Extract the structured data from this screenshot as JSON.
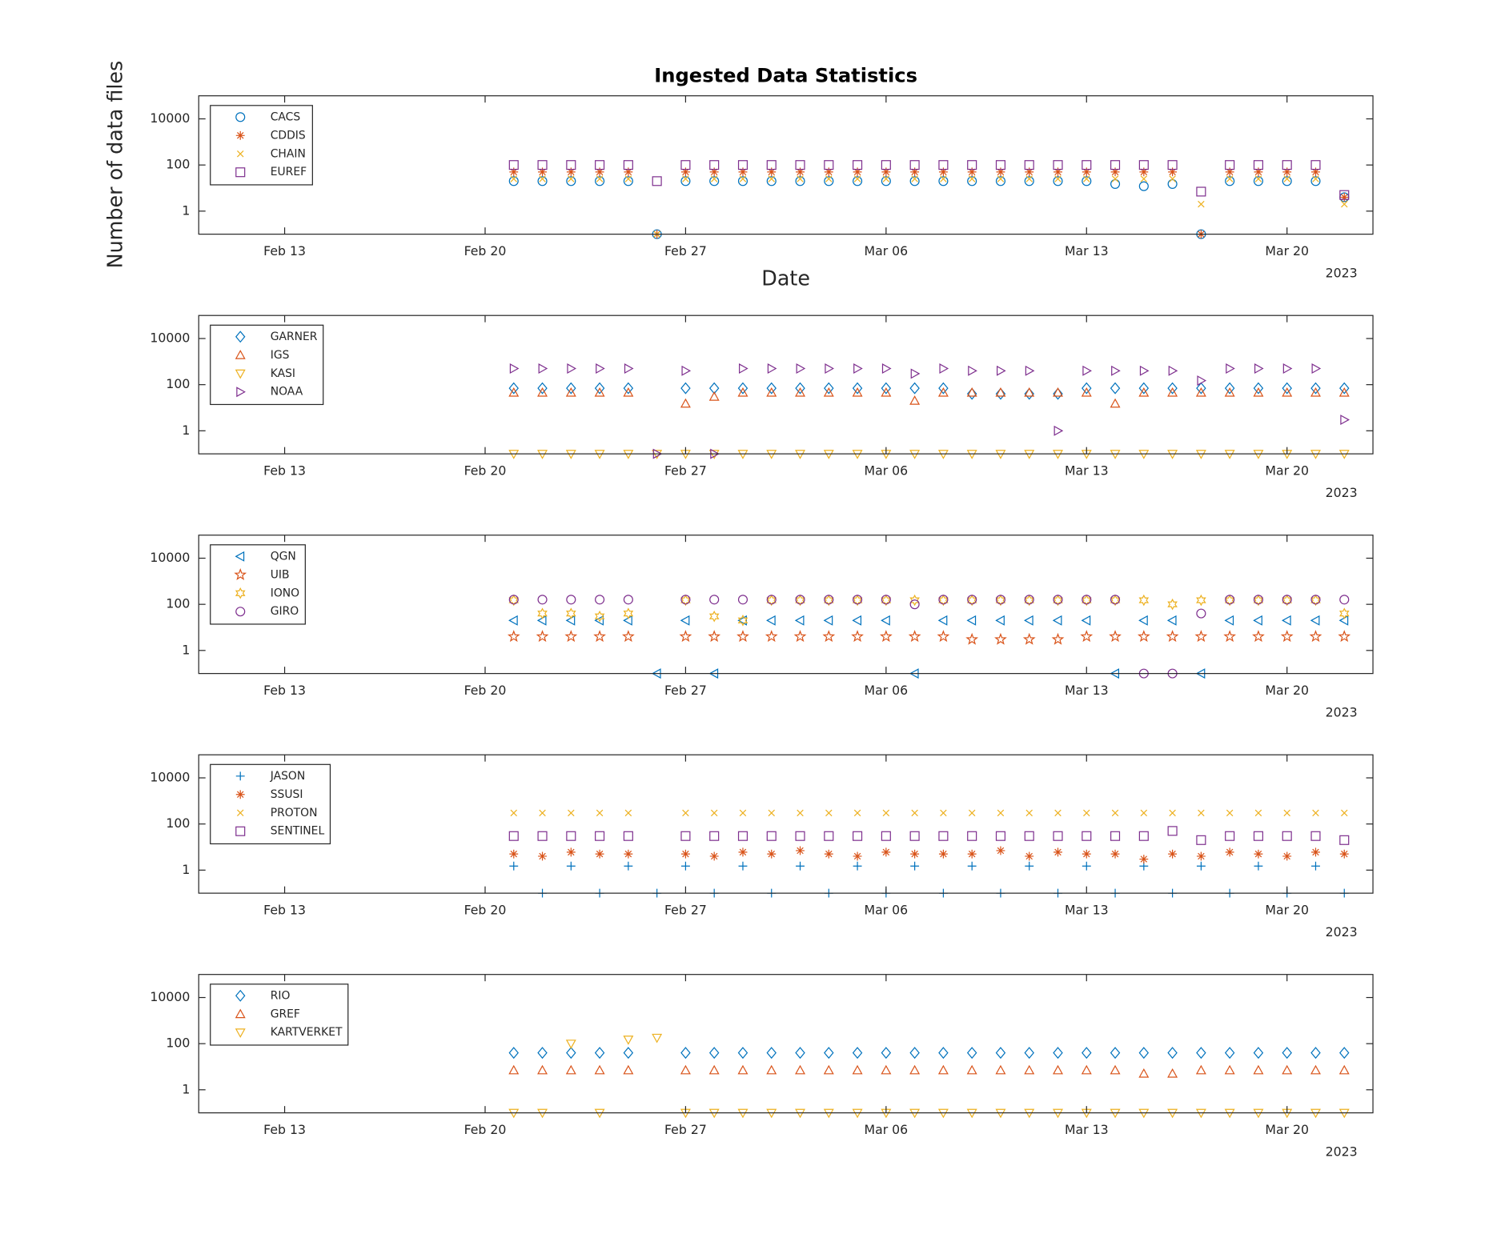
{
  "chart_data": [
    {
      "type": "scatter",
      "title": "Ingested Data Statistics",
      "x_label": "Date",
      "y_label": "Number of data files",
      "year_label": "2023",
      "log_y": true,
      "legend": "upper left",
      "xlim": [
        "2023-02-10",
        "2023-03-23"
      ],
      "xticks": [
        {
          "value": "2023-02-13",
          "label": "Feb 13"
        },
        {
          "value": "2023-02-20",
          "label": "Feb 20"
        },
        {
          "value": "2023-02-27",
          "label": "Feb 27"
        },
        {
          "value": "2023-03-06",
          "label": "Mar 06"
        },
        {
          "value": "2023-03-13",
          "label": "Mar 13"
        },
        {
          "value": "2023-03-20",
          "label": "Mar 20"
        }
      ],
      "ylim": [
        0.1,
        100000
      ],
      "yticks": [
        1,
        100,
        10000
      ],
      "x": [
        "2023-02-21",
        "2023-02-22",
        "2023-02-23",
        "2023-02-24",
        "2023-02-25",
        "2023-02-26",
        "2023-02-27",
        "2023-02-28",
        "2023-03-01",
        "2023-03-02",
        "2023-03-03",
        "2023-03-04",
        "2023-03-05",
        "2023-03-06",
        "2023-03-07",
        "2023-03-08",
        "2023-03-09",
        "2023-03-10",
        "2023-03-11",
        "2023-03-12",
        "2023-03-13",
        "2023-03-14",
        "2023-03-15",
        "2023-03-16",
        "2023-03-17",
        "2023-03-18",
        "2023-03-19",
        "2023-03-20",
        "2023-03-21",
        "2023-03-22"
      ],
      "series": [
        {
          "name": "CACS",
          "color": "#0072BD",
          "marker": "circle",
          "values": [
            20,
            20,
            20,
            20,
            20,
            0.1,
            20,
            20,
            20,
            20,
            20,
            20,
            20,
            20,
            20,
            20,
            20,
            20,
            20,
            20,
            20,
            15,
            12,
            15,
            0.1,
            20,
            20,
            20,
            20,
            4
          ]
        },
        {
          "name": "CDDIS",
          "color": "#D95319",
          "marker": "asterisk",
          "values": [
            50,
            50,
            50,
            50,
            50,
            0.1,
            50,
            50,
            50,
            50,
            50,
            50,
            50,
            50,
            50,
            50,
            50,
            50,
            50,
            50,
            50,
            50,
            50,
            50,
            0.1,
            50,
            50,
            50,
            50,
            4
          ]
        },
        {
          "name": "CHAIN",
          "color": "#EDB120",
          "marker": "x",
          "values": [
            25,
            25,
            25,
            25,
            25,
            0.1,
            25,
            25,
            25,
            25,
            25,
            25,
            25,
            25,
            25,
            25,
            25,
            25,
            25,
            25,
            25,
            25,
            25,
            25,
            2,
            25,
            25,
            25,
            25,
            2
          ]
        },
        {
          "name": "EUREF",
          "color": "#7E2F8E",
          "marker": "square",
          "values": [
            100,
            100,
            100,
            100,
            100,
            20,
            100,
            100,
            100,
            100,
            100,
            100,
            100,
            100,
            100,
            100,
            100,
            100,
            100,
            100,
            100,
            100,
            100,
            100,
            7,
            100,
            100,
            100,
            100,
            5
          ]
        }
      ]
    },
    {
      "type": "scatter",
      "year_label": "2023",
      "log_y": true,
      "legend": "upper left",
      "xlim": [
        "2023-02-10",
        "2023-03-23"
      ],
      "xticks": [
        {
          "value": "2023-02-13",
          "label": "Feb 13"
        },
        {
          "value": "2023-02-20",
          "label": "Feb 20"
        },
        {
          "value": "2023-02-27",
          "label": "Feb 27"
        },
        {
          "value": "2023-03-06",
          "label": "Mar 06"
        },
        {
          "value": "2023-03-13",
          "label": "Mar 13"
        },
        {
          "value": "2023-03-20",
          "label": "Mar 20"
        }
      ],
      "ylim": [
        0.1,
        100000
      ],
      "yticks": [
        1,
        100,
        10000
      ],
      "x": [
        "2023-02-21",
        "2023-02-22",
        "2023-02-23",
        "2023-02-24",
        "2023-02-25",
        "2023-02-26",
        "2023-02-27",
        "2023-02-28",
        "2023-03-01",
        "2023-03-02",
        "2023-03-03",
        "2023-03-04",
        "2023-03-05",
        "2023-03-06",
        "2023-03-07",
        "2023-03-08",
        "2023-03-09",
        "2023-03-10",
        "2023-03-11",
        "2023-03-12",
        "2023-03-13",
        "2023-03-14",
        "2023-03-15",
        "2023-03-16",
        "2023-03-17",
        "2023-03-18",
        "2023-03-19",
        "2023-03-20",
        "2023-03-21",
        "2023-03-22"
      ],
      "series": [
        {
          "name": "GARNER",
          "color": "#0072BD",
          "marker": "diamond",
          "values": [
            70,
            70,
            70,
            70,
            70,
            null,
            70,
            70,
            70,
            70,
            70,
            70,
            70,
            70,
            70,
            70,
            40,
            40,
            40,
            40,
            70,
            70,
            70,
            70,
            70,
            70,
            70,
            70,
            70,
            70
          ]
        },
        {
          "name": "IGS",
          "color": "#D95319",
          "marker": "triangle-up",
          "values": [
            45,
            45,
            45,
            45,
            45,
            null,
            15,
            30,
            45,
            45,
            45,
            45,
            45,
            45,
            20,
            45,
            45,
            45,
            45,
            45,
            45,
            15,
            45,
            45,
            45,
            45,
            45,
            45,
            45,
            45
          ]
        },
        {
          "name": "KASI",
          "color": "#EDB120",
          "marker": "triangle-down",
          "values": [
            0.1,
            0.1,
            0.1,
            0.1,
            0.1,
            0.1,
            0.1,
            0.1,
            0.1,
            0.1,
            0.1,
            0.1,
            0.1,
            0.1,
            0.1,
            0.1,
            0.1,
            0.1,
            0.1,
            0.1,
            0.1,
            0.1,
            0.1,
            0.1,
            0.1,
            0.1,
            0.1,
            0.1,
            0.1,
            0.1
          ]
        },
        {
          "name": "NOAA",
          "color": "#7E2F8E",
          "marker": "triangle-right",
          "values": [
            500,
            500,
            500,
            500,
            500,
            0.1,
            400,
            0.1,
            500,
            500,
            500,
            500,
            500,
            500,
            300,
            500,
            400,
            400,
            400,
            1,
            400,
            400,
            400,
            400,
            150,
            500,
            500,
            500,
            500,
            3
          ]
        }
      ]
    },
    {
      "type": "scatter",
      "year_label": "2023",
      "log_y": true,
      "legend": "upper left",
      "xlim": [
        "2023-02-10",
        "2023-03-23"
      ],
      "xticks": [
        {
          "value": "2023-02-13",
          "label": "Feb 13"
        },
        {
          "value": "2023-02-20",
          "label": "Feb 20"
        },
        {
          "value": "2023-02-27",
          "label": "Feb 27"
        },
        {
          "value": "2023-03-06",
          "label": "Mar 06"
        },
        {
          "value": "2023-03-13",
          "label": "Mar 13"
        },
        {
          "value": "2023-03-20",
          "label": "Mar 20"
        }
      ],
      "ylim": [
        0.1,
        100000
      ],
      "yticks": [
        1,
        100,
        10000
      ],
      "x": [
        "2023-02-21",
        "2023-02-22",
        "2023-02-23",
        "2023-02-24",
        "2023-02-25",
        "2023-02-26",
        "2023-02-27",
        "2023-02-28",
        "2023-03-01",
        "2023-03-02",
        "2023-03-03",
        "2023-03-04",
        "2023-03-05",
        "2023-03-06",
        "2023-03-07",
        "2023-03-08",
        "2023-03-09",
        "2023-03-10",
        "2023-03-11",
        "2023-03-12",
        "2023-03-13",
        "2023-03-14",
        "2023-03-15",
        "2023-03-16",
        "2023-03-17",
        "2023-03-18",
        "2023-03-19",
        "2023-03-20",
        "2023-03-21",
        "2023-03-22"
      ],
      "series": [
        {
          "name": "QGN",
          "color": "#0072BD",
          "marker": "triangle-left",
          "values": [
            20,
            20,
            20,
            20,
            20,
            0.1,
            20,
            0.1,
            20,
            20,
            20,
            20,
            20,
            20,
            0.1,
            20,
            20,
            20,
            20,
            20,
            20,
            0.1,
            20,
            20,
            0.1,
            20,
            20,
            20,
            20,
            20
          ]
        },
        {
          "name": "UIB",
          "color": "#D95319",
          "marker": "pentagram",
          "values": [
            4,
            4,
            4,
            4,
            4,
            null,
            4,
            4,
            4,
            4,
            4,
            4,
            4,
            4,
            4,
            4,
            3,
            3,
            3,
            3,
            4,
            4,
            4,
            4,
            4,
            4,
            4,
            4,
            4,
            4
          ]
        },
        {
          "name": "IONO",
          "color": "#EDB120",
          "marker": "hexagram",
          "values": [
            150,
            40,
            40,
            30,
            40,
            null,
            150,
            30,
            20,
            150,
            150,
            150,
            150,
            150,
            150,
            150,
            150,
            150,
            150,
            150,
            150,
            150,
            150,
            100,
            150,
            150,
            150,
            150,
            150,
            40
          ]
        },
        {
          "name": "GIRO",
          "color": "#7E2F8E",
          "marker": "circle",
          "values": [
            160,
            160,
            160,
            160,
            160,
            null,
            160,
            160,
            160,
            160,
            160,
            160,
            160,
            160,
            100,
            160,
            160,
            160,
            160,
            160,
            160,
            160,
            0.1,
            0.1,
            40,
            160,
            160,
            160,
            160,
            160
          ]
        }
      ]
    },
    {
      "type": "scatter",
      "year_label": "2023",
      "log_y": true,
      "legend": "upper left",
      "xlim": [
        "2023-02-10",
        "2023-03-23"
      ],
      "xticks": [
        {
          "value": "2023-02-13",
          "label": "Feb 13"
        },
        {
          "value": "2023-02-20",
          "label": "Feb 20"
        },
        {
          "value": "2023-02-27",
          "label": "Feb 27"
        },
        {
          "value": "2023-03-06",
          "label": "Mar 06"
        },
        {
          "value": "2023-03-13",
          "label": "Mar 13"
        },
        {
          "value": "2023-03-20",
          "label": "Mar 20"
        }
      ],
      "ylim": [
        0.1,
        100000
      ],
      "yticks": [
        1,
        100,
        10000
      ],
      "x": [
        "2023-02-21",
        "2023-02-22",
        "2023-02-23",
        "2023-02-24",
        "2023-02-25",
        "2023-02-26",
        "2023-02-27",
        "2023-02-28",
        "2023-03-01",
        "2023-03-02",
        "2023-03-03",
        "2023-03-04",
        "2023-03-05",
        "2023-03-06",
        "2023-03-07",
        "2023-03-08",
        "2023-03-09",
        "2023-03-10",
        "2023-03-11",
        "2023-03-12",
        "2023-03-13",
        "2023-03-14",
        "2023-03-15",
        "2023-03-16",
        "2023-03-17",
        "2023-03-18",
        "2023-03-19",
        "2023-03-20",
        "2023-03-21",
        "2023-03-22"
      ],
      "series": [
        {
          "name": "JASON",
          "color": "#0072BD",
          "marker": "plus",
          "values": [
            1.5,
            0.1,
            1.5,
            0.1,
            1.5,
            0.1,
            1.5,
            0.1,
            1.5,
            0.1,
            1.5,
            0.1,
            1.5,
            0.1,
            1.5,
            0.1,
            1.5,
            0.1,
            1.5,
            0.1,
            1.5,
            0.1,
            1.5,
            0.1,
            1.5,
            0.1,
            1.5,
            0.1,
            1.5,
            0.1
          ]
        },
        {
          "name": "SSUSI",
          "color": "#D95319",
          "marker": "asterisk",
          "values": [
            5,
            4,
            6,
            5,
            5,
            null,
            5,
            4,
            6,
            5,
            7,
            5,
            4,
            6,
            5,
            5,
            5,
            7,
            4,
            6,
            5,
            5,
            3,
            5,
            4,
            6,
            5,
            4,
            6,
            5
          ]
        },
        {
          "name": "PROTON",
          "color": "#EDB120",
          "marker": "x",
          "values": [
            300,
            300,
            300,
            300,
            300,
            null,
            300,
            300,
            300,
            300,
            300,
            300,
            300,
            300,
            300,
            300,
            300,
            300,
            300,
            300,
            300,
            300,
            300,
            300,
            300,
            300,
            300,
            300,
            300,
            300
          ]
        },
        {
          "name": "SENTINEL",
          "color": "#7E2F8E",
          "marker": "square",
          "values": [
            30,
            30,
            30,
            30,
            30,
            null,
            30,
            30,
            30,
            30,
            30,
            30,
            30,
            30,
            30,
            30,
            30,
            30,
            30,
            30,
            30,
            30,
            30,
            50,
            20,
            30,
            30,
            30,
            30,
            20
          ]
        }
      ]
    },
    {
      "type": "scatter",
      "year_label": "2023",
      "log_y": true,
      "legend": "upper left",
      "xlim": [
        "2023-02-10",
        "2023-03-23"
      ],
      "xticks": [
        {
          "value": "2023-02-13",
          "label": "Feb 13"
        },
        {
          "value": "2023-02-20",
          "label": "Feb 20"
        },
        {
          "value": "2023-02-27",
          "label": "Feb 27"
        },
        {
          "value": "2023-03-06",
          "label": "Mar 06"
        },
        {
          "value": "2023-03-13",
          "label": "Mar 13"
        },
        {
          "value": "2023-03-20",
          "label": "Mar 20"
        }
      ],
      "ylim": [
        0.1,
        100000
      ],
      "yticks": [
        1,
        100,
        10000
      ],
      "x": [
        "2023-02-21",
        "2023-02-22",
        "2023-02-23",
        "2023-02-24",
        "2023-02-25",
        "2023-02-26",
        "2023-02-27",
        "2023-02-28",
        "2023-03-01",
        "2023-03-02",
        "2023-03-03",
        "2023-03-04",
        "2023-03-05",
        "2023-03-06",
        "2023-03-07",
        "2023-03-08",
        "2023-03-09",
        "2023-03-10",
        "2023-03-11",
        "2023-03-12",
        "2023-03-13",
        "2023-03-14",
        "2023-03-15",
        "2023-03-16",
        "2023-03-17",
        "2023-03-18",
        "2023-03-19",
        "2023-03-20",
        "2023-03-21",
        "2023-03-22"
      ],
      "series": [
        {
          "name": "RIO",
          "color": "#0072BD",
          "marker": "diamond",
          "values": [
            40,
            40,
            40,
            40,
            40,
            null,
            40,
            40,
            40,
            40,
            40,
            40,
            40,
            40,
            40,
            40,
            40,
            40,
            40,
            40,
            40,
            40,
            40,
            40,
            40,
            40,
            40,
            40,
            40,
            40
          ]
        },
        {
          "name": "GREF",
          "color": "#D95319",
          "marker": "triangle-up",
          "values": [
            7,
            7,
            7,
            7,
            7,
            null,
            7,
            7,
            7,
            7,
            7,
            7,
            7,
            7,
            7,
            7,
            7,
            7,
            7,
            7,
            7,
            7,
            5,
            5,
            7,
            7,
            7,
            7,
            7,
            7
          ]
        },
        {
          "name": "KARTVERKET",
          "color": "#EDB120",
          "marker": "triangle-down",
          "values": [
            0.1,
            0.1,
            100,
            0.1,
            150,
            180,
            0.1,
            0.1,
            0.1,
            0.1,
            0.1,
            0.1,
            0.1,
            0.1,
            0.1,
            0.1,
            0.1,
            0.1,
            0.1,
            0.1,
            0.1,
            0.1,
            0.1,
            0.1,
            0.1,
            0.1,
            0.1,
            0.1,
            0.1,
            0.1
          ]
        }
      ]
    }
  ]
}
